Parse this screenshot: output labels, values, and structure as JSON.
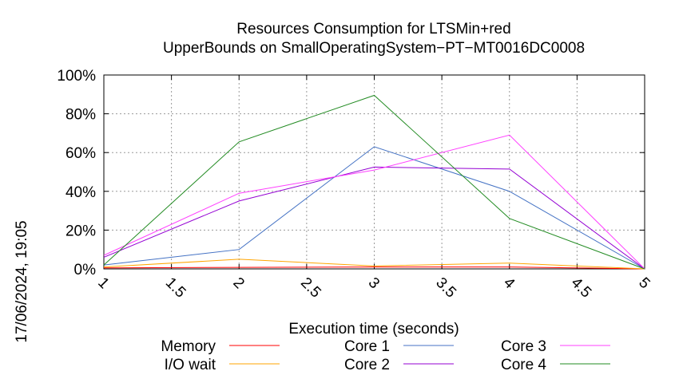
{
  "chart_data": {
    "type": "line",
    "title": "Resources Consumption for LTSMin+red",
    "subtitle": "UpperBounds on SmallOperatingSystem−PT−MT0016DC0008",
    "xlabel": "Execution time (seconds)",
    "ylabel": "",
    "xlim": [
      1,
      5
    ],
    "ylim": [
      0,
      100
    ],
    "x_ticks": [
      "1",
      "1.5",
      "2",
      "2.5",
      "3",
      "3.5",
      "4",
      "4.5",
      "5"
    ],
    "y_ticks": [
      "0%",
      "20%",
      "40%",
      "60%",
      "80%",
      "100%"
    ],
    "grid": true,
    "legend_position": "bottom",
    "series": [
      {
        "name": "Memory",
        "color": "#ff0000",
        "x": [
          1,
          2,
          3,
          4,
          5
        ],
        "y": [
          0.5,
          0.8,
          1.0,
          1.0,
          0.0
        ]
      },
      {
        "name": "I/O wait",
        "color": "#ffa500",
        "x": [
          1,
          2,
          3,
          4,
          5
        ],
        "y": [
          1.0,
          5.0,
          1.5,
          3.0,
          0.0
        ]
      },
      {
        "name": "Core 1",
        "color": "#4472c4",
        "x": [
          1,
          2,
          3,
          4,
          5
        ],
        "y": [
          2.0,
          10.0,
          63.0,
          40.0,
          0.0
        ]
      },
      {
        "name": "Core 2",
        "color": "#9400d3",
        "x": [
          1,
          2,
          3,
          4,
          5
        ],
        "y": [
          6.0,
          35.0,
          52.5,
          51.5,
          0.0
        ]
      },
      {
        "name": "Core 3",
        "color": "#ff40ff",
        "x": [
          1,
          2,
          3,
          4,
          5
        ],
        "y": [
          7.0,
          39.0,
          51.0,
          69.0,
          0.0
        ]
      },
      {
        "name": "Core 4",
        "color": "#228b22",
        "x": [
          1,
          2,
          3,
          4,
          5
        ],
        "y": [
          2.0,
          65.5,
          89.5,
          26.0,
          0.0
        ]
      }
    ]
  },
  "timestamp": "17/06/2024, 19:05"
}
